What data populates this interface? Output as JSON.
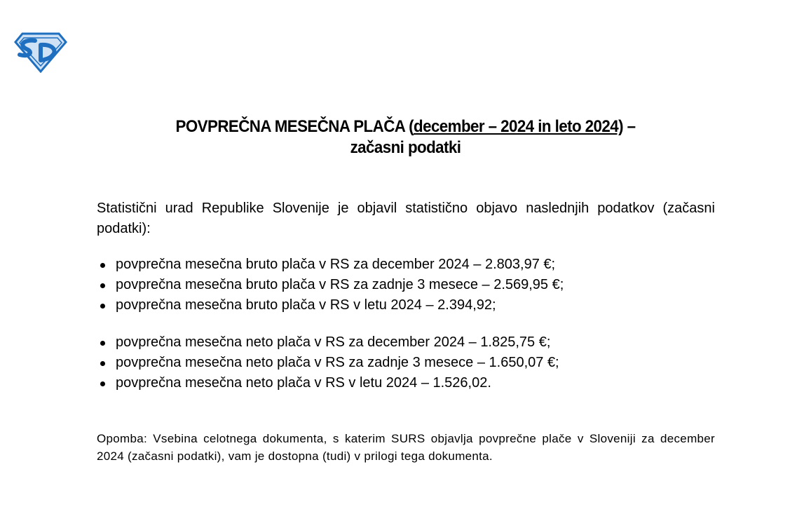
{
  "logo": {
    "text": "SD",
    "colors": {
      "fill": "#1e6fc0",
      "light": "#cfe1f5"
    }
  },
  "title": {
    "main": "POVPREČNA MESEČNA PLAČA (",
    "underlined": "december – 2024 in leto 2024)",
    "suffix": " –",
    "line2": "začasni podatki"
  },
  "intro": "Statistični urad Republike Slovenije je objavil statistično objavo naslednjih podatkov (začasni podatki):",
  "bruto": [
    "povprečna mesečna bruto plača v RS za december 2024 – 2.803,97 €;",
    "povprečna mesečna bruto plača v RS za zadnje 3 mesece – 2.569,95 €;",
    "povprečna mesečna bruto plača v RS v letu 2024 – 2.394,92;"
  ],
  "neto": [
    "povprečna mesečna neto plača v RS za december 2024 – 1.825,75 €;",
    "povprečna mesečna neto plača v RS za zadnje 3 mesece – 1.650,07 €;",
    "povprečna mesečna neto plača v RS v letu 2024 – 1.526,02."
  ],
  "note": "Opomba: Vsebina celotnega dokumenta, s katerim SURS objavlja povprečne plače v Sloveniji za december 2024 (začasni podatki), vam je dostopna (tudi) v prilogi tega dokumenta."
}
